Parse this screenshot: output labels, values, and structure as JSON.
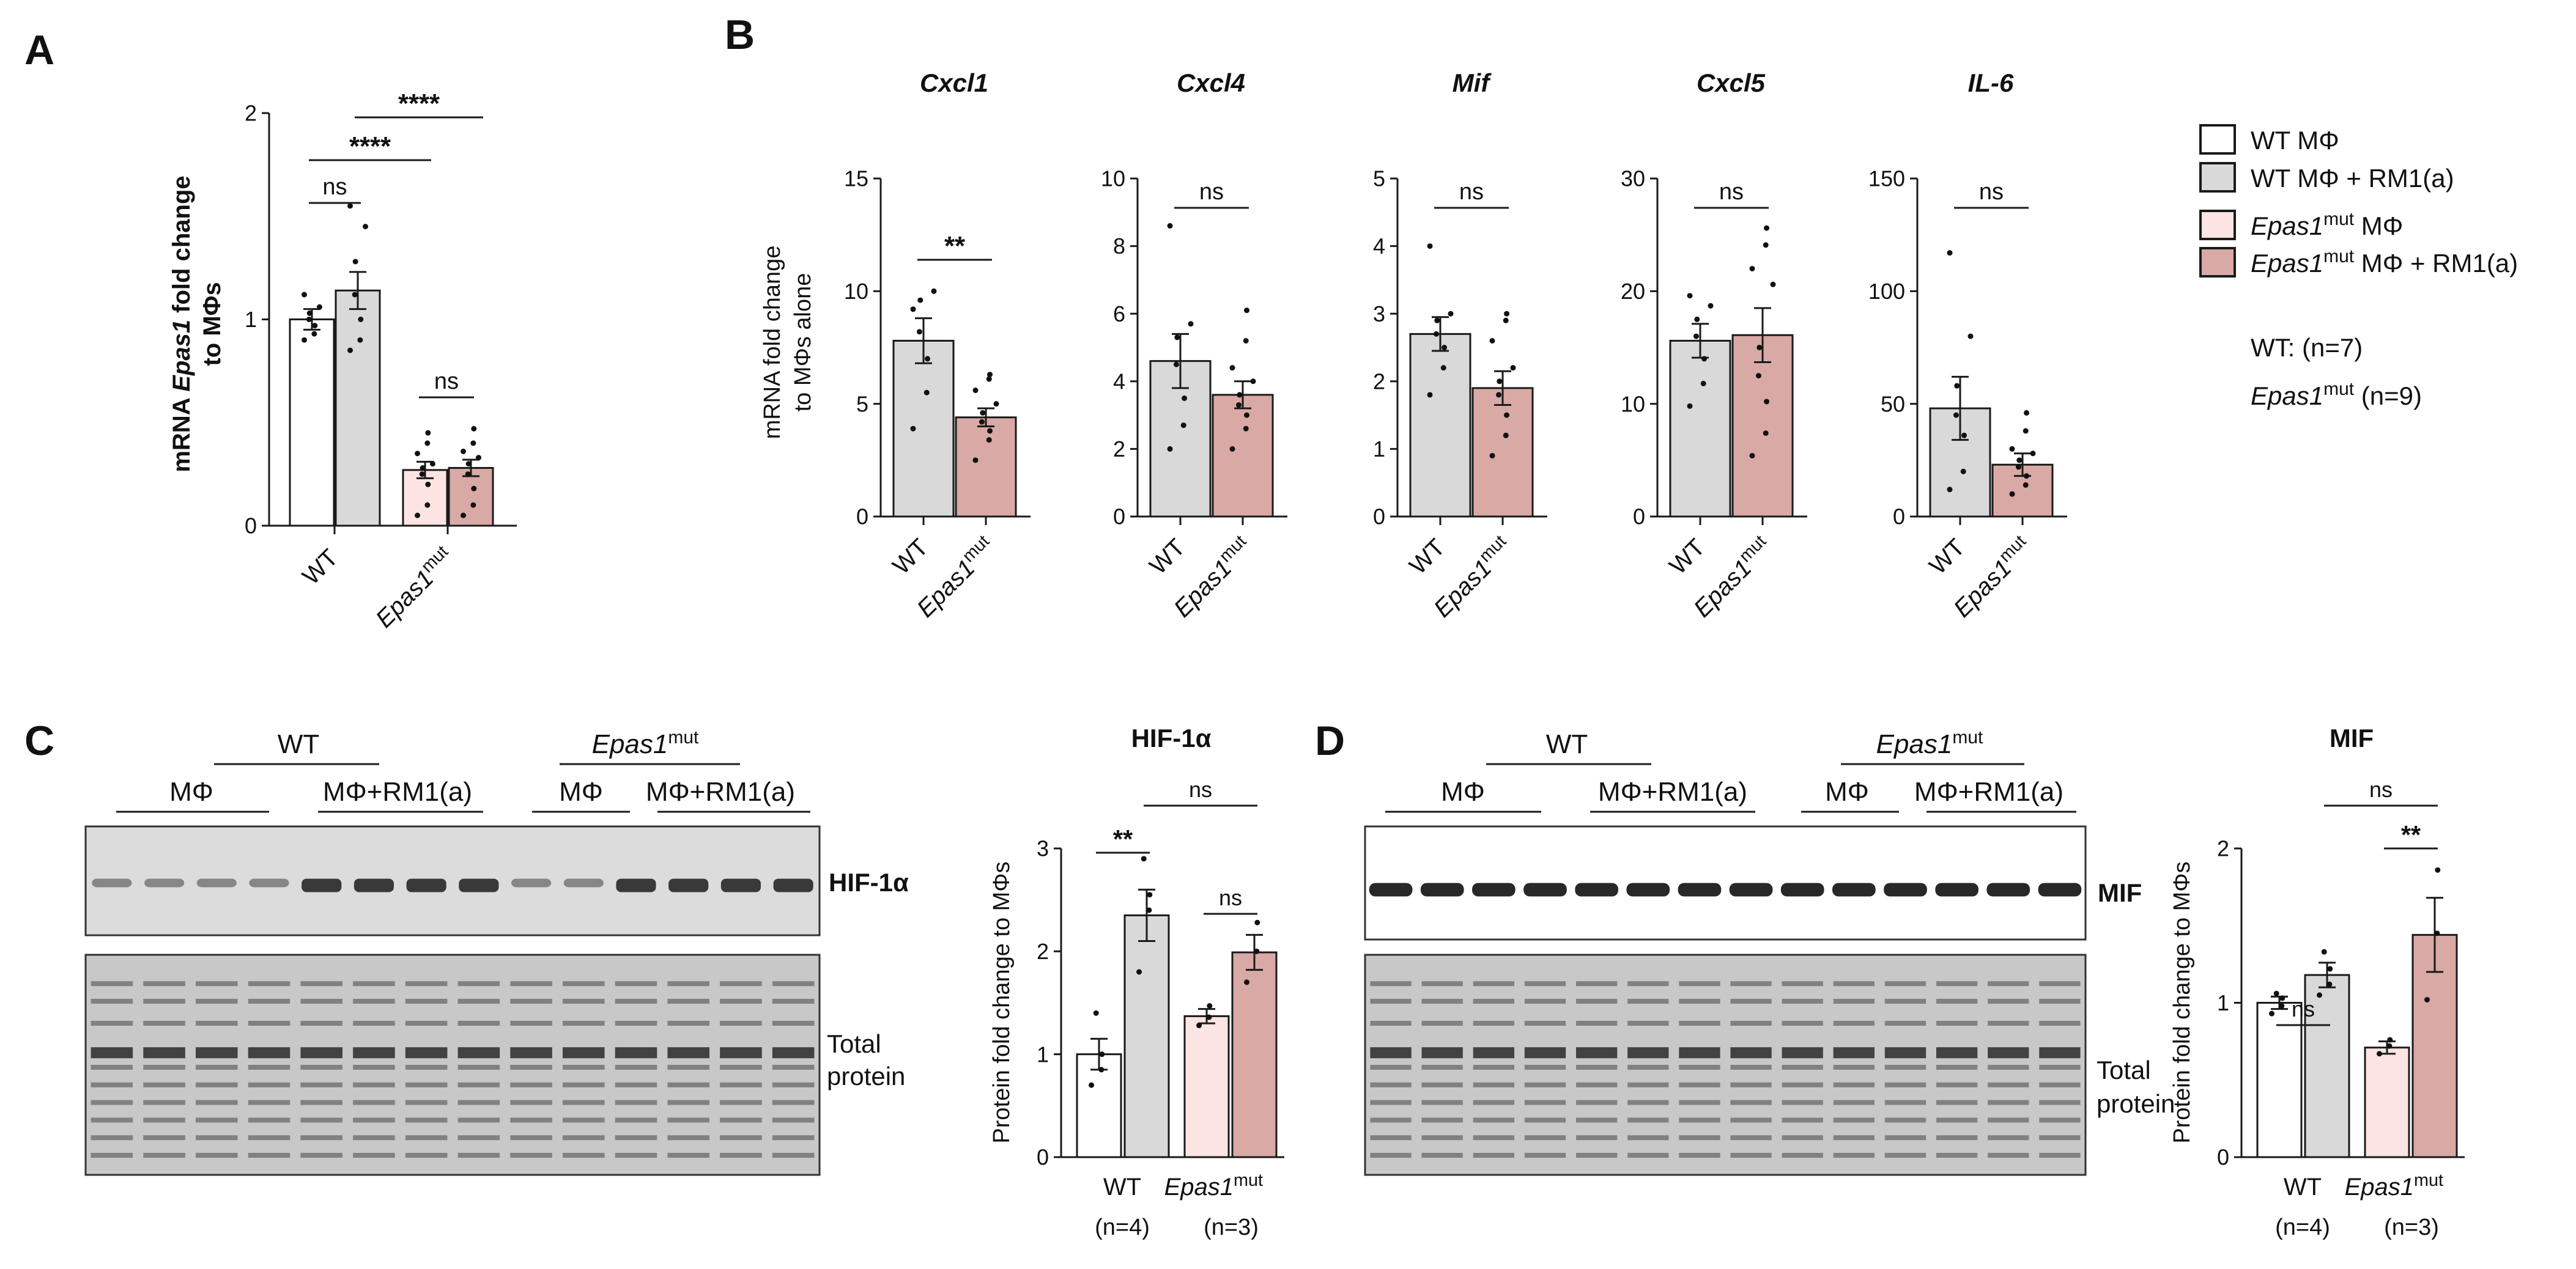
{
  "colors": {
    "wt_mphi": "#ffffff",
    "wt_rm1": "#d9d9d9",
    "mut_mphi": "#fbe4e2",
    "mut_rm1": "#d9a9a6",
    "axis": "#1a1a1a",
    "blot_dark": "#1c1c1c"
  },
  "panels": {
    "A": "A",
    "B": "B",
    "C": "C",
    "D": "D"
  },
  "legend": {
    "items": [
      {
        "key": "wt_mphi",
        "text": "WT MΦ",
        "italic": "",
        "sup": "",
        "tail": ""
      },
      {
        "key": "wt_rm1",
        "text": "WT MΦ + RM1(a)",
        "italic": "",
        "sup": "",
        "tail": ""
      },
      {
        "key": "mut_mphi",
        "text": "",
        "italic": "Epas1",
        "sup": "mut",
        "tail": " MΦ"
      },
      {
        "key": "mut_rm1",
        "text": "",
        "italic": "Epas1",
        "sup": "mut",
        "tail": " MΦ + RM1(a)"
      }
    ],
    "n_wt": "WT: (n=7)",
    "n_mut_italic": "Epas1",
    "n_mut_sup": "mut",
    "n_mut_tail": " (n=9)"
  },
  "chart_data": [
    {
      "id": "A",
      "type": "bar",
      "ylabel_pre": "mRNA ",
      "ylabel_italic": "Epas1",
      "ylabel_post": " fold change",
      "ylabel2": "to MΦs",
      "yticks": [
        "0",
        "1",
        "2"
      ],
      "ylim": [
        0,
        2
      ],
      "groups": [
        "WT",
        "Epas1^mut"
      ],
      "bars": [
        {
          "series": "WT MΦ",
          "value": 1.0,
          "sem": 0.05,
          "points": [
            0.9,
            0.93,
            0.97,
            1.0,
            1.03,
            1.06,
            1.12
          ]
        },
        {
          "series": "WT MΦ + RM1(a)",
          "value": 1.14,
          "sem": 0.09,
          "points": [
            0.85,
            0.9,
            1.0,
            1.12,
            1.28,
            1.45,
            1.55
          ]
        },
        {
          "series": "Epas1mut MΦ",
          "value": 0.27,
          "sem": 0.04,
          "points": [
            0.05,
            0.1,
            0.2,
            0.25,
            0.28,
            0.3,
            0.35,
            0.4,
            0.45
          ]
        },
        {
          "series": "Epas1mut MΦ + RM1(a)",
          "value": 0.28,
          "sem": 0.04,
          "points": [
            0.05,
            0.1,
            0.18,
            0.25,
            0.3,
            0.33,
            0.36,
            0.4,
            0.47
          ]
        }
      ],
      "significance": [
        "ns",
        "****",
        "****",
        "ns"
      ]
    },
    {
      "id": "B",
      "type": "bar",
      "ylabel": "mRNA fold change",
      "ylabel2": "to MΦs alone",
      "groups": [
        "WT",
        "Epas1^mut"
      ],
      "subplots": [
        {
          "title": "Cxcl1",
          "ylim": [
            0,
            15
          ],
          "yticks": [
            "0",
            "5",
            "10",
            "15"
          ],
          "values": [
            7.8,
            4.4
          ],
          "sem": [
            1.0,
            0.4
          ],
          "sig": "**",
          "points_wt": [
            3.9,
            5.5,
            7.0,
            8.2,
            9.6,
            10.0,
            9.2
          ],
          "points_mut": [
            2.5,
            3.4,
            3.8,
            4.2,
            4.6,
            5.0,
            5.6,
            6.1,
            6.3
          ]
        },
        {
          "title": "Cxcl4",
          "ylim": [
            0,
            10
          ],
          "yticks": [
            "0",
            "2",
            "4",
            "6",
            "8",
            "10"
          ],
          "values": [
            4.6,
            3.6
          ],
          "sem": [
            0.8,
            0.4
          ],
          "sig": "ns",
          "points_wt": [
            2.0,
            2.7,
            3.5,
            4.5,
            5.3,
            5.7,
            8.6
          ],
          "points_mut": [
            2.0,
            2.6,
            3.0,
            3.3,
            3.6,
            4.0,
            4.4,
            5.2,
            6.1
          ]
        },
        {
          "title": "Mif",
          "ylim": [
            0,
            5
          ],
          "yticks": [
            "0",
            "1",
            "2",
            "3",
            "4",
            "5"
          ],
          "values": [
            2.7,
            1.9
          ],
          "sem": [
            0.25,
            0.25
          ],
          "sig": "ns",
          "points_wt": [
            1.8,
            2.2,
            2.5,
            2.7,
            2.9,
            3.0,
            4.0
          ],
          "points_mut": [
            0.9,
            1.2,
            1.5,
            1.8,
            2.0,
            2.2,
            2.6,
            2.9,
            3.0
          ]
        },
        {
          "title": "Cxcl5",
          "ylim": [
            0,
            30
          ],
          "yticks": [
            "0",
            "10",
            "20",
            "30"
          ],
          "values": [
            15.6,
            16.1
          ],
          "sem": [
            1.5,
            2.4
          ],
          "sig": "ns",
          "points_wt": [
            9.8,
            11.8,
            14.0,
            16.0,
            17.5,
            18.7,
            19.6
          ],
          "points_mut": [
            5.4,
            7.4,
            10.2,
            12.5,
            15.0,
            20.6,
            22.0,
            24.1,
            25.6
          ]
        },
        {
          "title": "IL-6",
          "ylim": [
            0,
            150
          ],
          "yticks": [
            "0",
            "50",
            "100",
            "150"
          ],
          "values": [
            48,
            23
          ],
          "sem": [
            14,
            5
          ],
          "sig": "ns",
          "points_wt": [
            12,
            20,
            36,
            45,
            58,
            80,
            117
          ],
          "points_mut": [
            10,
            14,
            18,
            22,
            25,
            28,
            30,
            38,
            46
          ]
        }
      ]
    },
    {
      "id": "C_chart",
      "type": "bar",
      "title": "HIF-1α",
      "ylabel": "Protein fold change to MΦs",
      "ylim": [
        0,
        3
      ],
      "yticks": [
        "0",
        "1",
        "2",
        "3"
      ],
      "bars": [
        {
          "series": "WT MΦ",
          "value": 1.0,
          "sem": 0.15,
          "points": [
            0.7,
            0.85,
            1.0,
            1.4
          ]
        },
        {
          "series": "WT MΦ + RM1(a)",
          "value": 2.35,
          "sem": 0.25,
          "points": [
            1.8,
            2.4,
            2.55,
            2.9
          ]
        },
        {
          "series": "Epas1mut MΦ",
          "value": 1.37,
          "sem": 0.07,
          "points": [
            1.28,
            1.36,
            1.47
          ]
        },
        {
          "series": "Epas1mut MΦ + RM1(a)",
          "value": 1.99,
          "sem": 0.17,
          "points": [
            1.7,
            2.0,
            2.28
          ]
        }
      ],
      "significance": [
        "**",
        "ns",
        "ns"
      ],
      "xgroups": [
        "WT",
        "Epas1^mut"
      ],
      "ns": [
        "(n=4)",
        "(n=3)"
      ]
    },
    {
      "id": "D_chart",
      "type": "bar",
      "title": "MIF",
      "ylabel": "Protein fold change to MΦs",
      "ylim": [
        0,
        2
      ],
      "yticks": [
        "0",
        "1",
        "2"
      ],
      "bars": [
        {
          "series": "WT MΦ",
          "value": 1.0,
          "sem": 0.04,
          "points": [
            0.93,
            0.98,
            1.03,
            1.06
          ]
        },
        {
          "series": "WT MΦ + RM1(a)",
          "value": 1.18,
          "sem": 0.08,
          "points": [
            1.05,
            1.12,
            1.22,
            1.33
          ]
        },
        {
          "series": "Epas1mut MΦ",
          "value": 0.71,
          "sem": 0.04,
          "points": [
            0.67,
            0.72,
            0.76
          ]
        },
        {
          "series": "Epas1mut MΦ + RM1(a)",
          "value": 1.44,
          "sem": 0.24,
          "points": [
            1.02,
            1.45,
            1.86
          ]
        }
      ],
      "significance": [
        "ns",
        "**",
        "ns"
      ],
      "xgroups": [
        "WT",
        "Epas1^mut"
      ],
      "ns": [
        "(n=4)",
        "(n=3)"
      ]
    }
  ],
  "blots": {
    "group_wt": "WT",
    "group_mut_italic": "Epas1",
    "group_mut_sup": "mut",
    "lane_mphi": "MΦ",
    "lane_rm1": "MΦ+RM1(a)",
    "label_hif": "HIF-1α",
    "label_mif": "MIF",
    "label_total_1": "Total",
    "label_total_2": "protein"
  }
}
